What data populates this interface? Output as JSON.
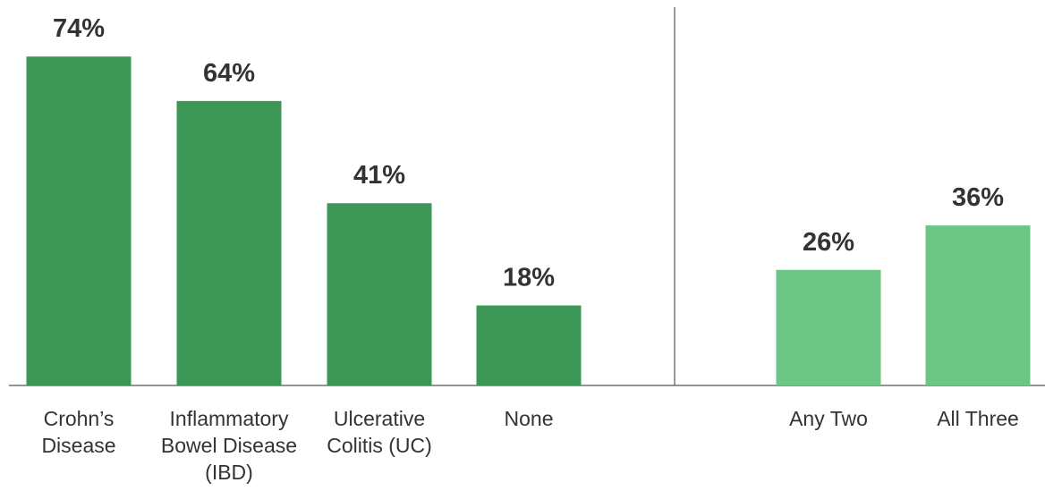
{
  "chart_data": {
    "type": "bar",
    "title": "",
    "xlabel": "",
    "ylabel": "",
    "ylim": [
      0,
      80
    ],
    "grid": false,
    "legend": "none",
    "colors": {
      "primary": "#3c9757",
      "secondary": "#6cc686",
      "text": "#333333",
      "axis": "#555555"
    },
    "categories": [
      [
        "Crohn’s",
        "Disease"
      ],
      [
        "Inflammatory",
        "Bowel Disease",
        "(IBD)"
      ],
      [
        "Ulcerative",
        "Colitis (UC)"
      ],
      [
        "None"
      ],
      [
        "Any Two"
      ],
      [
        "All Three"
      ]
    ],
    "values": [
      74,
      64,
      41,
      18,
      26,
      36
    ],
    "value_labels": [
      "74%",
      "64%",
      "41%",
      "18%",
      "26%",
      "36%"
    ],
    "groups": [
      0,
      0,
      0,
      0,
      1,
      1
    ]
  }
}
